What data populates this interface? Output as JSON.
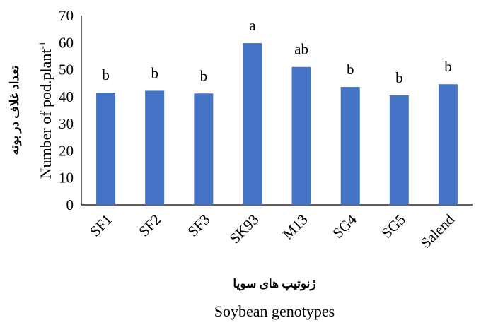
{
  "chart_data": {
    "type": "bar",
    "categories": [
      "SF1",
      "SF2",
      "SF3",
      "SK93",
      "M13",
      "SG4",
      "SG5",
      "Salend"
    ],
    "values": [
      41.5,
      42.2,
      41.2,
      59.8,
      51.0,
      43.6,
      40.5,
      44.6
    ],
    "letters": [
      "b",
      "b",
      "b",
      "a",
      "ab",
      "b",
      "b",
      "b"
    ],
    "ylim": [
      0,
      70
    ],
    "yticks": [
      "0",
      "10",
      "20",
      "30",
      "40",
      "50",
      "60",
      "70"
    ],
    "ylabel_persian": "تعداد غلاف در بوته",
    "ylabel_main": "Number of pod.plant",
    "ylabel_superscript": "-1",
    "xlabel_persian": "ژنوتیپ های سویا",
    "xlabel": "Soybean genotypes",
    "bar_color": "#4472C4",
    "grid": false,
    "legend": "none"
  }
}
